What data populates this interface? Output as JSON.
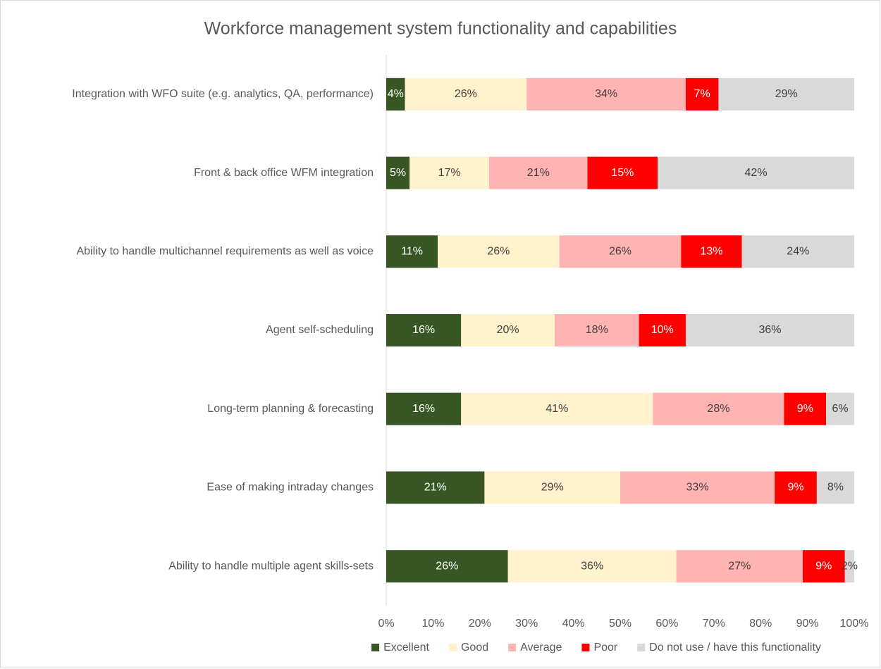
{
  "chart_data": {
    "type": "stacked-barh",
    "title": "Workforce management system functionality and capabilities",
    "categories": [
      "Integration with WFO suite (e.g. analytics, QA, performance)",
      "Front & back office WFM integration",
      "Ability to handle multichannel requirements as well as voice",
      "Agent self-scheduling",
      "Long-term planning & forecasting",
      "Ease of making intraday changes",
      "Ability to handle multiple agent skills-sets"
    ],
    "series": [
      {
        "name": "Excellent",
        "color": "#375623",
        "values": [
          4,
          5,
          11,
          16,
          16,
          21,
          26
        ],
        "value_labels": [
          "4%",
          "5%",
          "11%",
          "16%",
          "16%",
          "21%",
          "26%"
        ]
      },
      {
        "name": "Good",
        "color": "#FFF2CC",
        "values": [
          26,
          17,
          26,
          20,
          41,
          29,
          36
        ],
        "value_labels": [
          "26%",
          "17%",
          "26%",
          "20%",
          "41%",
          "29%",
          "36%"
        ]
      },
      {
        "name": "Average",
        "color": "#FFB3B3",
        "values": [
          34,
          21,
          26,
          18,
          28,
          33,
          27
        ],
        "value_labels": [
          "34%",
          "21%",
          "26%",
          "18%",
          "28%",
          "33%",
          "27%"
        ]
      },
      {
        "name": "Poor",
        "color": "#FF0000",
        "values": [
          7,
          15,
          13,
          10,
          9,
          9,
          9
        ],
        "value_labels": [
          "7%",
          "15%",
          "13%",
          "10%",
          "9%",
          "9%",
          "9%"
        ]
      },
      {
        "name": "Do not use / have this functionality",
        "color": "#D9D9D9",
        "values": [
          29,
          42,
          24,
          36,
          6,
          8,
          2
        ],
        "value_labels": [
          "29%",
          "42%",
          "24%",
          "36%",
          "6%",
          "8%",
          "2%"
        ]
      }
    ],
    "xlim": [
      0,
      100
    ],
    "xticks": [
      {
        "value": 0,
        "label": "0%"
      },
      {
        "value": 10,
        "label": "10%"
      },
      {
        "value": 20,
        "label": "20%"
      },
      {
        "value": 30,
        "label": "30%"
      },
      {
        "value": 40,
        "label": "40%"
      },
      {
        "value": 50,
        "label": "50%"
      },
      {
        "value": 60,
        "label": "60%"
      },
      {
        "value": 70,
        "label": "70%"
      },
      {
        "value": 80,
        "label": "80%"
      },
      {
        "value": 90,
        "label": "90%"
      },
      {
        "value": 100,
        "label": "100%"
      }
    ],
    "legend": "bottom"
  }
}
